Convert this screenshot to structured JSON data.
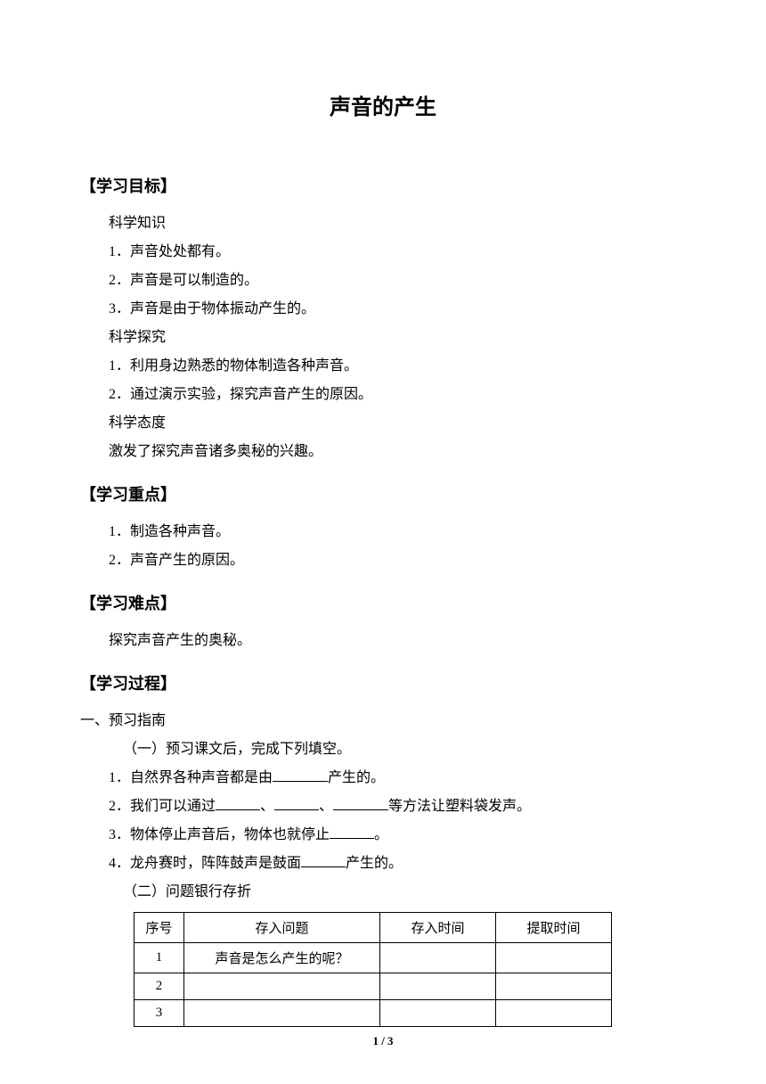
{
  "title": "声音的产生",
  "sections": {
    "goals": {
      "header": "【学习目标】",
      "knowledge": {
        "label": "科学知识",
        "items": [
          "1．声音处处都有。",
          "2．声音是可以制造的。",
          "3．声音是由于物体振动产生的。"
        ]
      },
      "inquiry": {
        "label": "科学探究",
        "items": [
          "1．利用身边熟悉的物体制造各种声音。",
          "2．通过演示实验，探究声音产生的原因。"
        ]
      },
      "attitude": {
        "label": "科学态度",
        "items": [
          "激发了探究声音诸多奥秘的兴趣。"
        ]
      }
    },
    "keypoints": {
      "header": "【学习重点】",
      "items": [
        "1．制造各种声音。",
        "2．声音产生的原因。"
      ]
    },
    "difficulty": {
      "header": "【学习难点】",
      "text": "探究声音产生的奥秘。"
    },
    "process": {
      "header": "【学习过程】",
      "preview": {
        "label": "一、预习指南",
        "part1_label": "（一）预习课文后，完成下列填空。",
        "fill1_a": "1．自然界各种声音都是由",
        "fill1_b": "产生的。",
        "fill2_a": "2．我们可以通过",
        "fill2_sep": "、",
        "fill2_b": "等方法让塑料袋发声。",
        "fill3_a": "3．物体停止声音后，物体也就停止",
        "fill3_b": "。",
        "fill4_a": "4．龙舟赛时，阵阵鼓声是鼓面",
        "fill4_b": "产生的。",
        "part2_label": "（二）问题银行存折"
      }
    }
  },
  "table": {
    "headers": [
      "序号",
      "存入问题",
      "存入时间",
      "提取时间"
    ],
    "rows": [
      [
        "1",
        "声音是怎么产生的呢？",
        "",
        ""
      ],
      [
        "2",
        "",
        "",
        ""
      ],
      [
        "3",
        "",
        "",
        ""
      ]
    ]
  },
  "page_number": "1 / 3"
}
